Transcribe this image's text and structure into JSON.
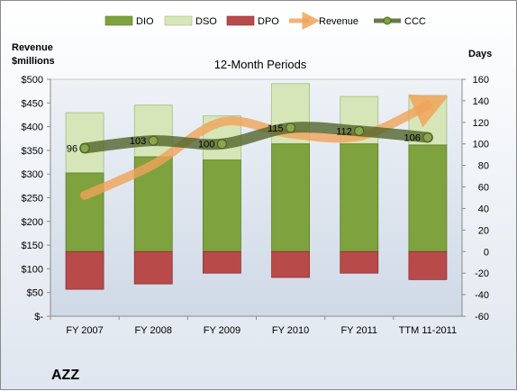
{
  "chart_data": {
    "type": "bar",
    "title": "12-Month Periods",
    "company": "AZZ",
    "categories": [
      "FY 2007",
      "FY 2008",
      "FY 2009",
      "FY 2010",
      "FY 2011",
      "TTM 11-2011"
    ],
    "left_axis": {
      "title_line1": "Revenue",
      "title_line2": "$millions",
      "range": [
        0,
        500
      ],
      "ticks": [
        0,
        50,
        100,
        150,
        200,
        250,
        300,
        350,
        400,
        450,
        500
      ],
      "tick_labels": [
        "$-",
        "$50",
        "$100",
        "$150",
        "$200",
        "$250",
        "$300",
        "$350",
        "$400",
        "$450",
        "$500"
      ]
    },
    "right_axis": {
      "title": "Days",
      "range": [
        -60,
        160
      ],
      "ticks": [
        -60,
        -40,
        -20,
        0,
        20,
        40,
        60,
        80,
        100,
        120,
        140,
        160
      ],
      "tick_labels": [
        "-60",
        "-40",
        "-20",
        "0",
        "20",
        "40",
        "60",
        "80",
        "100",
        "120",
        "140",
        "160"
      ]
    },
    "series": [
      {
        "name": "DIO",
        "axis": "days",
        "kind": "stacked-bar",
        "color": "#7ea23d",
        "values": [
          73,
          88,
          85,
          100,
          100,
          99
        ]
      },
      {
        "name": "DSO",
        "axis": "days",
        "kind": "stacked-bar",
        "color": "#d6e6b8",
        "values": [
          56,
          48,
          41,
          56,
          44,
          46
        ]
      },
      {
        "name": "DPO",
        "axis": "days",
        "kind": "negative-bar",
        "color": "#b94a4a",
        "values": [
          -35,
          -30,
          -20,
          -24,
          -20,
          -26
        ]
      },
      {
        "name": "Revenue",
        "axis": "revenue",
        "kind": "line",
        "color": "#f0a35a",
        "values": [
          255,
          320,
          410,
          385,
          380,
          445
        ]
      },
      {
        "name": "CCC",
        "axis": "days",
        "kind": "line",
        "color": "#4f6228",
        "values": [
          96,
          103,
          100,
          115,
          112,
          106
        ]
      }
    ],
    "legend": [
      "DIO",
      "DSO",
      "DPO",
      "Revenue",
      "CCC"
    ],
    "legend_position": "top",
    "grid": false
  }
}
